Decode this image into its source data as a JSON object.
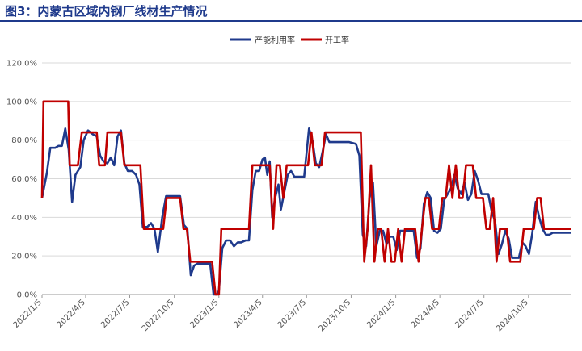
{
  "title": "图3：内蒙古区域内钢厂线材生产情况",
  "chart_data": {
    "type": "line",
    "ylim": [
      0,
      120
    ],
    "yticks": [
      "0.0%",
      "20.0%",
      "40.0%",
      "60.0%",
      "80.0%",
      "100.0%",
      "120.0%"
    ],
    "xticks": [
      "2022/1/5",
      "2022/4/5",
      "2022/7/5",
      "2022/10/5",
      "2023/1/5",
      "2023/4/5",
      "2023/7/5",
      "2023/10/5",
      "2024/1/5",
      "2024/4/5",
      "2024/7/5",
      "2024/10/5"
    ],
    "x_range": [
      "2022/1/5",
      "2024/12/31"
    ],
    "legend_position": "top-right",
    "series": [
      {
        "name": "产能利用率",
        "color": "#1f3a8c",
        "points": [
          [
            "2022/1/5",
            50
          ],
          [
            "2022/1/15",
            63
          ],
          [
            "2022/1/22",
            76
          ],
          [
            "2022/2/1",
            76
          ],
          [
            "2022/2/8",
            77
          ],
          [
            "2022/2/15",
            77
          ],
          [
            "2022/2/22",
            86
          ],
          [
            "2022/3/1",
            75
          ],
          [
            "2022/3/8",
            48
          ],
          [
            "2022/3/15",
            62
          ],
          [
            "2022/3/25",
            66
          ],
          [
            "2022/4/1",
            80
          ],
          [
            "2022/4/10",
            85
          ],
          [
            "2022/4/20",
            83
          ],
          [
            "2022/4/28",
            82
          ],
          [
            "2022/5/5",
            72
          ],
          [
            "2022/5/12",
            69
          ],
          [
            "2022/5/20",
            68
          ],
          [
            "2022/5/27",
            71
          ],
          [
            "2022/6/3",
            67
          ],
          [
            "2022/6/10",
            82
          ],
          [
            "2022/6/17",
            85
          ],
          [
            "2022/6/24",
            68
          ],
          [
            "2022/7/1",
            64
          ],
          [
            "2022/7/10",
            64
          ],
          [
            "2022/7/18",
            62
          ],
          [
            "2022/7/25",
            57
          ],
          [
            "2022/8/1",
            35
          ],
          [
            "2022/8/10",
            35
          ],
          [
            "2022/8/18",
            37
          ],
          [
            "2022/8/25",
            34
          ],
          [
            "2022/9/1",
            22
          ],
          [
            "2022/9/10",
            40
          ],
          [
            "2022/9/18",
            51
          ],
          [
            "2022/9/28",
            51
          ],
          [
            "2022/10/10",
            51
          ],
          [
            "2022/10/17",
            51
          ],
          [
            "2022/10/25",
            36
          ],
          [
            "2022/11/1",
            34
          ],
          [
            "2022/11/8",
            10
          ],
          [
            "2022/11/15",
            15
          ],
          [
            "2022/11/22",
            16
          ],
          [
            "2022/12/1",
            16
          ],
          [
            "2022/12/10",
            16
          ],
          [
            "2022/12/18",
            16
          ],
          [
            "2022/12/25",
            0
          ],
          [
            "2023/1/1",
            0
          ],
          [
            "2023/1/5",
            2
          ],
          [
            "2023/1/12",
            24
          ],
          [
            "2023/1/20",
            28
          ],
          [
            "2023/1/28",
            28
          ],
          [
            "2023/2/5",
            25
          ],
          [
            "2023/2/13",
            27
          ],
          [
            "2023/2/20",
            27
          ],
          [
            "2023/3/1",
            28
          ],
          [
            "2023/3/8",
            28
          ],
          [
            "2023/3/15",
            54
          ],
          [
            "2023/3/22",
            64
          ],
          [
            "2023/3/29",
            64
          ],
          [
            "2023/4/5",
            70
          ],
          [
            "2023/4/10",
            71
          ],
          [
            "2023/4/15",
            62
          ],
          [
            "2023/4/20",
            69
          ],
          [
            "2023/4/25",
            40
          ],
          [
            "2023/5/1",
            50
          ],
          [
            "2023/5/8",
            57
          ],
          [
            "2023/5/13",
            44
          ],
          [
            "2023/5/20",
            53
          ],
          [
            "2023/5/27",
            62
          ],
          [
            "2023/6/3",
            64
          ],
          [
            "2023/6/10",
            61
          ],
          [
            "2023/6/20",
            61
          ],
          [
            "2023/6/30",
            61
          ],
          [
            "2023/7/10",
            86
          ],
          [
            "2023/7/17",
            80
          ],
          [
            "2023/7/24",
            68
          ],
          [
            "2023/7/31",
            66
          ],
          [
            "2023/8/7",
            74
          ],
          [
            "2023/8/14",
            83
          ],
          [
            "2023/8/21",
            79
          ],
          [
            "2023/9/1",
            79
          ],
          [
            "2023/9/15",
            79
          ],
          [
            "2023/10/1",
            79
          ],
          [
            "2023/10/15",
            78
          ],
          [
            "2023/10/22",
            72
          ],
          [
            "2023/10/29",
            31
          ],
          [
            "2023/11/5",
            25
          ],
          [
            "2023/11/12",
            50
          ],
          [
            "2023/11/19",
            58
          ],
          [
            "2023/11/26",
            25
          ],
          [
            "2023/12/3",
            33
          ],
          [
            "2023/12/10",
            33
          ],
          [
            "2023/12/17",
            26
          ],
          [
            "2023/12/24",
            30
          ],
          [
            "2023/12/31",
            30
          ],
          [
            "2024/1/7",
            23
          ],
          [
            "2024/1/14",
            33
          ],
          [
            "2024/1/21",
            33
          ],
          [
            "2024/1/28",
            33
          ],
          [
            "2024/2/4",
            33
          ],
          [
            "2024/2/11",
            33
          ],
          [
            "2024/2/18",
            19
          ],
          [
            "2024/2/25",
            24
          ],
          [
            "2024/3/3",
            47
          ],
          [
            "2024/3/10",
            53
          ],
          [
            "2024/3/17",
            50
          ],
          [
            "2024/3/24",
            33
          ],
          [
            "2024/3/31",
            32
          ],
          [
            "2024/4/7",
            34
          ],
          [
            "2024/4/14",
            49
          ],
          [
            "2024/4/21",
            52
          ],
          [
            "2024/4/28",
            55
          ],
          [
            "2024/5/5",
            62
          ],
          [
            "2024/5/12",
            55
          ],
          [
            "2024/5/19",
            52
          ],
          [
            "2024/5/26",
            58
          ],
          [
            "2024/6/2",
            49
          ],
          [
            "2024/6/9",
            52
          ],
          [
            "2024/6/16",
            64
          ],
          [
            "2024/6/23",
            59
          ],
          [
            "2024/6/30",
            52
          ],
          [
            "2024/7/7",
            52
          ],
          [
            "2024/7/14",
            52
          ],
          [
            "2024/7/21",
            43
          ],
          [
            "2024/7/28",
            38
          ],
          [
            "2024/8/4",
            21
          ],
          [
            "2024/8/11",
            26
          ],
          [
            "2024/8/18",
            33
          ],
          [
            "2024/8/25",
            29
          ],
          [
            "2024/9/1",
            19
          ],
          [
            "2024/9/8",
            19
          ],
          [
            "2024/9/15",
            19
          ],
          [
            "2024/9/22",
            27
          ],
          [
            "2024/9/29",
            25
          ],
          [
            "2024/10/6",
            21
          ],
          [
            "2024/10/13",
            32
          ],
          [
            "2024/10/20",
            48
          ],
          [
            "2024/10/27",
            40
          ],
          [
            "2024/11/3",
            34
          ],
          [
            "2024/11/10",
            31
          ],
          [
            "2024/11/17",
            31
          ],
          [
            "2024/11/24",
            32
          ],
          [
            "2024/12/31",
            32
          ]
        ]
      },
      {
        "name": "开工率",
        "color": "#c00000",
        "points": [
          [
            "2022/1/5",
            50
          ],
          [
            "2022/1/8",
            100
          ],
          [
            "2022/1/25",
            100
          ],
          [
            "2022/2/15",
            100
          ],
          [
            "2022/2/28",
            100
          ],
          [
            "2022/3/3",
            67
          ],
          [
            "2022/3/20",
            67
          ],
          [
            "2022/3/28",
            84
          ],
          [
            "2022/4/20",
            84
          ],
          [
            "2022/4/28",
            84
          ],
          [
            "2022/5/3",
            67
          ],
          [
            "2022/5/15",
            67
          ],
          [
            "2022/5/20",
            84
          ],
          [
            "2022/6/10",
            84
          ],
          [
            "2022/6/17",
            84
          ],
          [
            "2022/6/24",
            67
          ],
          [
            "2022/7/20",
            67
          ],
          [
            "2022/7/27",
            67
          ],
          [
            "2022/8/3",
            34
          ],
          [
            "2022/9/5",
            34
          ],
          [
            "2022/9/12",
            34
          ],
          [
            "2022/9/19",
            50
          ],
          [
            "2022/10/17",
            50
          ],
          [
            "2022/10/24",
            34
          ],
          [
            "2022/10/31",
            34
          ],
          [
            "2022/11/7",
            17
          ],
          [
            "2022/12/15",
            17
          ],
          [
            "2022/12/22",
            17
          ],
          [
            "2022/12/29",
            0
          ],
          [
            "2023/1/5",
            0
          ],
          [
            "2023/1/10",
            34
          ],
          [
            "2023/3/8",
            34
          ],
          [
            "2023/3/15",
            67
          ],
          [
            "2023/4/15",
            67
          ],
          [
            "2023/4/20",
            67
          ],
          [
            "2023/4/27",
            34
          ],
          [
            "2023/5/4",
            67
          ],
          [
            "2023/5/11",
            67
          ],
          [
            "2023/5/18",
            50
          ],
          [
            "2023/5/25",
            67
          ],
          [
            "2023/6/10",
            67
          ],
          [
            "2023/7/1",
            67
          ],
          [
            "2023/7/8",
            67
          ],
          [
            "2023/7/15",
            84
          ],
          [
            "2023/7/22",
            67
          ],
          [
            "2023/7/29",
            67
          ],
          [
            "2023/8/5",
            67
          ],
          [
            "2023/8/12",
            84
          ],
          [
            "2023/9/15",
            84
          ],
          [
            "2023/10/25",
            84
          ],
          [
            "2023/11/1",
            17
          ],
          [
            "2023/11/8",
            34
          ],
          [
            "2023/11/15",
            67
          ],
          [
            "2023/11/22",
            17
          ],
          [
            "2023/11/29",
            34
          ],
          [
            "2023/12/6",
            34
          ],
          [
            "2023/12/13",
            17
          ],
          [
            "2023/12/20",
            34
          ],
          [
            "2023/12/27",
            17
          ],
          [
            "2024/1/3",
            17
          ],
          [
            "2024/1/10",
            34
          ],
          [
            "2024/1/17",
            17
          ],
          [
            "2024/1/24",
            34
          ],
          [
            "2024/2/14",
            34
          ],
          [
            "2024/2/21",
            17
          ],
          [
            "2024/2/28",
            34
          ],
          [
            "2024/3/6",
            50
          ],
          [
            "2024/3/13",
            50
          ],
          [
            "2024/3/20",
            34
          ],
          [
            "2024/3/27",
            34
          ],
          [
            "2024/4/3",
            34
          ],
          [
            "2024/4/10",
            50
          ],
          [
            "2024/4/17",
            50
          ],
          [
            "2024/4/24",
            67
          ],
          [
            "2024/5/1",
            50
          ],
          [
            "2024/5/8",
            67
          ],
          [
            "2024/5/15",
            50
          ],
          [
            "2024/5/22",
            50
          ],
          [
            "2024/5/29",
            67
          ],
          [
            "2024/6/5",
            67
          ],
          [
            "2024/6/12",
            67
          ],
          [
            "2024/6/19",
            50
          ],
          [
            "2024/7/3",
            50
          ],
          [
            "2024/7/10",
            34
          ],
          [
            "2024/7/17",
            34
          ],
          [
            "2024/7/24",
            50
          ],
          [
            "2024/7/31",
            17
          ],
          [
            "2024/8/7",
            34
          ],
          [
            "2024/8/21",
            34
          ],
          [
            "2024/8/28",
            17
          ],
          [
            "2024/9/4",
            17
          ],
          [
            "2024/9/11",
            17
          ],
          [
            "2024/9/18",
            17
          ],
          [
            "2024/9/25",
            34
          ],
          [
            "2024/10/16",
            34
          ],
          [
            "2024/10/23",
            50
          ],
          [
            "2024/10/30",
            50
          ],
          [
            "2024/11/6",
            34
          ],
          [
            "2024/11/13",
            34
          ],
          [
            "2024/12/31",
            34
          ]
        ]
      }
    ]
  }
}
